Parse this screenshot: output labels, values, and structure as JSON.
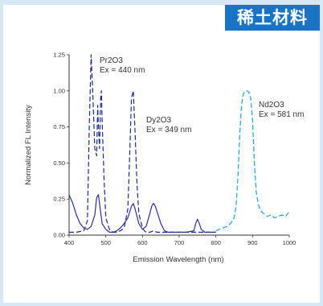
{
  "banner": {
    "text": "稀土材料"
  },
  "chart_data": {
    "type": "line",
    "title": "",
    "xlabel": "Emission Wavelength (nm)",
    "ylabel": "Normalized FL Intensity",
    "xlim": [
      400,
      1000
    ],
    "ylim": [
      0,
      1.25
    ],
    "xticks": [
      400,
      500,
      600,
      700,
      800,
      900,
      1000
    ],
    "yticks": [
      0,
      0.25,
      0.5,
      0.75,
      1.0,
      1.25
    ],
    "xtick_labels": [
      "400",
      "500",
      "600",
      "700",
      "800",
      "900",
      "1000"
    ],
    "ytick_labels": [
      "0.00",
      "0.25",
      "0.50",
      "0.75",
      "1.00",
      "1.25"
    ],
    "grid": false,
    "annotations": [
      {
        "lines": [
          "Pr2O3",
          "Ex = 440 nm"
        ]
      },
      {
        "lines": [
          "Dy2O3",
          "Ex = 349 nm"
        ]
      },
      {
        "lines": [
          "Nd2O3",
          "Ex = 581 nm"
        ]
      }
    ],
    "series": [
      {
        "name": "Pr2O3",
        "color": "#1a2a8c",
        "dash": "dash",
        "x": [
          400,
          420,
          440,
          450,
          455,
          460,
          465,
          470,
          475,
          478,
          480,
          483,
          486,
          488,
          490,
          495,
          500,
          510,
          520,
          530,
          540,
          550,
          560,
          565,
          570,
          575,
          580,
          585,
          590,
          600,
          605,
          610,
          620,
          630,
          640,
          650,
          660,
          670,
          680,
          690,
          700,
          720,
          740,
          760,
          780,
          800
        ],
        "y": [
          0.02,
          0.02,
          0.03,
          0.1,
          0.75,
          1.25,
          0.95,
          0.6,
          0.55,
          0.9,
          0.75,
          0.6,
          0.95,
          1.0,
          0.8,
          0.4,
          0.12,
          0.04,
          0.02,
          0.02,
          0.03,
          0.05,
          0.18,
          0.55,
          0.95,
          1.0,
          0.7,
          0.35,
          0.15,
          0.05,
          0.03,
          0.02,
          0.02,
          0.03,
          0.02,
          0.02,
          0.02,
          0.02,
          0.02,
          0.02,
          0.02,
          0.02,
          0.02,
          0.02,
          0.02,
          0.02
        ]
      },
      {
        "name": "Dy2O3",
        "color": "#2a3090",
        "dash": "solid",
        "x": [
          400,
          410,
          420,
          430,
          440,
          450,
          460,
          470,
          475,
          480,
          485,
          490,
          500,
          510,
          520,
          530,
          540,
          550,
          560,
          570,
          575,
          580,
          590,
          600,
          610,
          620,
          625,
          630,
          635,
          640,
          650,
          660,
          670,
          680,
          690,
          700,
          720,
          740,
          745,
          750,
          755,
          760,
          770,
          780,
          790,
          800
        ],
        "y": [
          0.28,
          0.22,
          0.14,
          0.08,
          0.05,
          0.04,
          0.06,
          0.14,
          0.26,
          0.28,
          0.18,
          0.08,
          0.04,
          0.02,
          0.02,
          0.03,
          0.05,
          0.08,
          0.12,
          0.2,
          0.22,
          0.18,
          0.08,
          0.04,
          0.06,
          0.15,
          0.2,
          0.22,
          0.2,
          0.16,
          0.08,
          0.03,
          0.02,
          0.02,
          0.02,
          0.02,
          0.02,
          0.03,
          0.08,
          0.11,
          0.08,
          0.04,
          0.02,
          0.02,
          0.02,
          0.02
        ]
      },
      {
        "name": "Nd2O3",
        "color": "#1ea0d8",
        "dash": "dash",
        "x": [
          800,
          810,
          820,
          830,
          840,
          850,
          855,
          860,
          865,
          870,
          875,
          880,
          885,
          890,
          895,
          900,
          905,
          910,
          915,
          920,
          925,
          930,
          940,
          950,
          960,
          970,
          980,
          990,
          1000
        ],
        "y": [
          0.03,
          0.04,
          0.05,
          0.06,
          0.08,
          0.12,
          0.2,
          0.4,
          0.7,
          0.9,
          0.98,
          1.0,
          1.0,
          0.99,
          0.95,
          0.8,
          0.5,
          0.3,
          0.22,
          0.18,
          0.16,
          0.15,
          0.13,
          0.14,
          0.12,
          0.13,
          0.14,
          0.13,
          0.16
        ]
      }
    ]
  }
}
